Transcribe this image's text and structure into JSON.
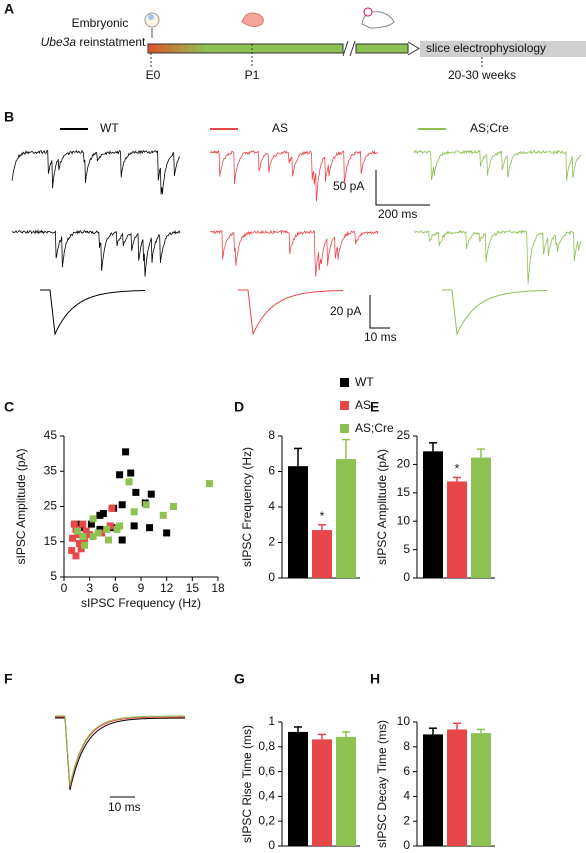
{
  "panel_labels": [
    "A",
    "B",
    "C",
    "D",
    "E",
    "F",
    "G",
    "H"
  ],
  "timeline": {
    "line1": "Embryonic",
    "gene": "Ube3a",
    "rest": " reinstatment",
    "stage_start": "E0",
    "stage_mid": "P1",
    "stage_end": "20-30 weeks",
    "endpoint": "slice electrophysiology"
  },
  "traces": {
    "names": [
      "WT",
      "AS",
      "AS;Cre"
    ],
    "scale_amp_1": "50 pA",
    "scale_time_1": "200 ms",
    "scale_amp_2": "20 pA",
    "scale_time_2": "10 ms",
    "scale_time_f": "10 ms"
  },
  "legend": {
    "names": [
      "WT",
      "AS",
      "AS;Cre"
    ],
    "colors": [
      "#000000",
      "#e8474a",
      "#8dc152"
    ]
  },
  "chart_data": [
    {
      "type": "scatter",
      "xlabel": "sIPSC Frequency (Hz)",
      "ylabel": "sIPSC Amplitude (pA)",
      "xlim": [
        0,
        18
      ],
      "xticks": [
        0,
        3,
        6,
        9,
        12,
        15,
        18
      ],
      "ylim": [
        5,
        45
      ],
      "yticks": [
        5,
        15,
        25,
        35,
        45
      ],
      "series": [
        {
          "x": [
            7.2,
            7.8,
            6.5,
            6.8,
            8.4,
            5.8,
            4.6,
            4.2,
            10.2,
            9.5,
            8.2,
            10,
            12,
            6.8,
            4.2,
            3.2,
            2,
            1.5,
            5.6
          ],
          "values": [
            40.5,
            34.5,
            34,
            25.5,
            29,
            24.5,
            23,
            22.5,
            28.5,
            26,
            19.5,
            19,
            17.5,
            15.5,
            18.5,
            20,
            19,
            20,
            19
          ]
        },
        {
          "x": [
            1.2,
            1.4,
            1,
            1.8,
            1.4,
            0.9,
            2,
            2.4,
            2.6,
            3,
            4.4,
            5.4,
            5.6,
            2.2,
            1.6
          ],
          "values": [
            20,
            18.5,
            16,
            14.5,
            11,
            12.5,
            13,
            15,
            18,
            17,
            17.5,
            19.5,
            24.5,
            20,
            17
          ]
        },
        {
          "x": [
            7.6,
            17,
            9.6,
            12.8,
            11.6,
            8.2,
            6.2,
            6.5,
            5.2,
            4,
            2.2,
            3.4,
            2.4,
            1.6,
            3.4,
            5
          ],
          "values": [
            32,
            31.5,
            25.5,
            25,
            22.5,
            23.5,
            18.5,
            19.5,
            15.5,
            17.5,
            16.5,
            16.5,
            14,
            18,
            21.5,
            18.5
          ]
        }
      ]
    },
    {
      "type": "bar",
      "ylabel": "sIPSC Frequency (Hz)",
      "values": [
        6.3,
        2.7,
        6.7
      ],
      "errors": [
        1.0,
        0.3,
        1.1
      ],
      "significance": [
        null,
        "*",
        null
      ],
      "ylim": [
        0,
        8
      ],
      "yticks": [
        0,
        2,
        4,
        6,
        8
      ]
    },
    {
      "type": "bar",
      "ylabel": "sIPSC Amplitude (pA)",
      "values": [
        22.3,
        17,
        21.2
      ],
      "errors": [
        1.5,
        0.7,
        1.5
      ],
      "significance": [
        null,
        "*",
        null
      ],
      "ylim": [
        0,
        25
      ],
      "yticks": [
        0,
        5,
        10,
        15,
        20,
        25
      ]
    },
    {
      "type": "bar",
      "ylabel": "sIPSC Rise Time (ms)",
      "values": [
        0.92,
        0.86,
        0.88
      ],
      "errors": [
        0.04,
        0.04,
        0.04
      ],
      "ylim": [
        0,
        1
      ],
      "yticks": [
        0,
        {
          "value": 0.2,
          "label": "0,2"
        },
        {
          "value": 0.4,
          "label": "0,4"
        },
        {
          "value": 0.6,
          "label": "0,6"
        },
        {
          "value": 0.8,
          "label": "0,8"
        },
        1
      ]
    },
    {
      "type": "bar",
      "ylabel": "sIPSC  Decay Time (ms)",
      "values": [
        9.0,
        9.4,
        9.1
      ],
      "errors": [
        0.5,
        0.5,
        0.3
      ],
      "ylim": [
        0,
        10
      ],
      "yticks": [
        0,
        2,
        4,
        6,
        8,
        10
      ]
    }
  ]
}
